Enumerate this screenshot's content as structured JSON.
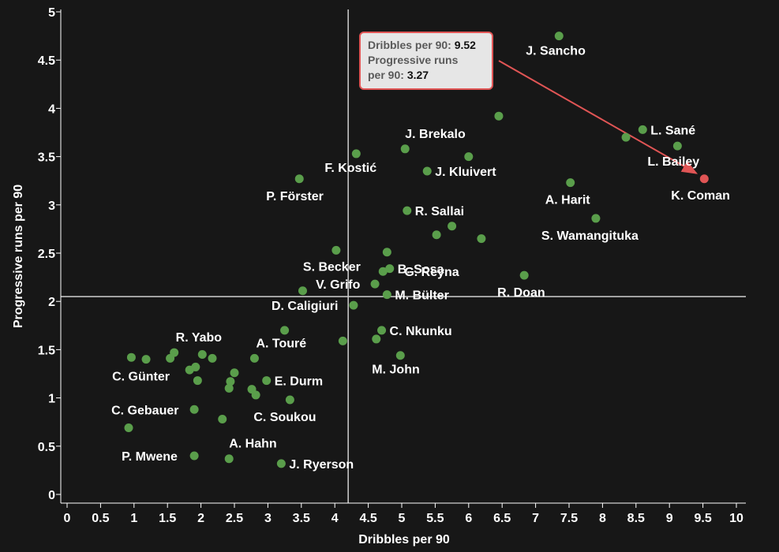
{
  "chart_data": {
    "type": "scatter",
    "xlabel": "Dribbles per 90",
    "ylabel": "Progressive runs per 90",
    "xlim": [
      0,
      10
    ],
    "ylim": [
      0,
      5
    ],
    "xticks": [
      "0",
      "0.5",
      "1",
      "1.5",
      "2",
      "2.5",
      "3",
      "3.5",
      "4",
      "4.5",
      "5",
      "5.5",
      "6",
      "6.5",
      "7",
      "7.5",
      "8",
      "8.5",
      "9",
      "9.5",
      "10"
    ],
    "yticks": [
      "0",
      "0.5",
      "1",
      "1.5",
      "2",
      "2.5",
      "3",
      "3.5",
      "4",
      "4.5",
      "5"
    ],
    "reference_lines": {
      "x": 4.2,
      "y": 2.05
    },
    "colors": {
      "point": "#5a9e4b",
      "highlight": "#e05555",
      "background": "#171717",
      "axis": "#ffffff"
    },
    "points": [
      {
        "x": 7.35,
        "y": 4.75,
        "label": "J. Sancho"
      },
      {
        "x": 6.45,
        "y": 3.92,
        "label": ""
      },
      {
        "x": 8.6,
        "y": 3.78,
        "label": "L. Sané"
      },
      {
        "x": 8.35,
        "y": 3.7,
        "label": ""
      },
      {
        "x": 9.12,
        "y": 3.61,
        "label": "L. Bailey"
      },
      {
        "x": 9.52,
        "y": 3.27,
        "label": "K. Coman",
        "highlight": true
      },
      {
        "x": 5.05,
        "y": 3.58,
        "label": "J. Brekalo"
      },
      {
        "x": 6.0,
        "y": 3.5,
        "label": ""
      },
      {
        "x": 4.32,
        "y": 3.53,
        "label": "F. Kostić"
      },
      {
        "x": 5.38,
        "y": 3.35,
        "label": "J. Kluivert"
      },
      {
        "x": 3.47,
        "y": 3.27,
        "label": "P. Förster"
      },
      {
        "x": 7.52,
        "y": 3.23,
        "label": "A. Harit"
      },
      {
        "x": 5.08,
        "y": 2.94,
        "label": "R. Sallai"
      },
      {
        "x": 7.9,
        "y": 2.86,
        "label": "S. Wamangituka"
      },
      {
        "x": 5.75,
        "y": 2.78,
        "label": ""
      },
      {
        "x": 5.52,
        "y": 2.69,
        "label": ""
      },
      {
        "x": 6.19,
        "y": 2.65,
        "label": ""
      },
      {
        "x": 4.02,
        "y": 2.53,
        "label": "S. Becker"
      },
      {
        "x": 4.78,
        "y": 2.51,
        "label": "G. Reyna"
      },
      {
        "x": 4.82,
        "y": 2.34,
        "label": "B. Sosa"
      },
      {
        "x": 4.72,
        "y": 2.31,
        "label": ""
      },
      {
        "x": 6.83,
        "y": 2.27,
        "label": "R. Doan"
      },
      {
        "x": 4.6,
        "y": 2.18,
        "label": "V. Grifo"
      },
      {
        "x": 3.52,
        "y": 2.11,
        "label": ""
      },
      {
        "x": 4.78,
        "y": 2.07,
        "label": "M. Bülter"
      },
      {
        "x": 4.28,
        "y": 1.96,
        "label": "D. Caligiuri"
      },
      {
        "x": 4.7,
        "y": 1.7,
        "label": "C. Nkunku"
      },
      {
        "x": 3.25,
        "y": 1.7,
        "label": ""
      },
      {
        "x": 4.12,
        "y": 1.59,
        "label": ""
      },
      {
        "x": 4.62,
        "y": 1.61,
        "label": ""
      },
      {
        "x": 1.6,
        "y": 1.47,
        "label": "R. Yabo"
      },
      {
        "x": 2.02,
        "y": 1.45,
        "label": ""
      },
      {
        "x": 4.98,
        "y": 1.44,
        "label": "M. John"
      },
      {
        "x": 2.8,
        "y": 1.41,
        "label": "A. Touré"
      },
      {
        "x": 2.17,
        "y": 1.41,
        "label": ""
      },
      {
        "x": 1.54,
        "y": 1.41,
        "label": ""
      },
      {
        "x": 0.96,
        "y": 1.42,
        "label": ""
      },
      {
        "x": 1.18,
        "y": 1.4,
        "label": "C. Günter"
      },
      {
        "x": 1.92,
        "y": 1.32,
        "label": ""
      },
      {
        "x": 1.83,
        "y": 1.29,
        "label": ""
      },
      {
        "x": 2.5,
        "y": 1.26,
        "label": ""
      },
      {
        "x": 1.95,
        "y": 1.18,
        "label": ""
      },
      {
        "x": 2.44,
        "y": 1.17,
        "label": ""
      },
      {
        "x": 2.98,
        "y": 1.18,
        "label": "E. Durm"
      },
      {
        "x": 2.42,
        "y": 1.1,
        "label": ""
      },
      {
        "x": 2.76,
        "y": 1.09,
        "label": ""
      },
      {
        "x": 2.82,
        "y": 1.03,
        "label": ""
      },
      {
        "x": 3.33,
        "y": 0.98,
        "label": "C. Soukou"
      },
      {
        "x": 1.9,
        "y": 0.88,
        "label": "C. Gebauer"
      },
      {
        "x": 2.32,
        "y": 0.78,
        "label": ""
      },
      {
        "x": 0.92,
        "y": 0.69,
        "label": ""
      },
      {
        "x": 1.9,
        "y": 0.4,
        "label": "P. Mwene"
      },
      {
        "x": 2.42,
        "y": 0.37,
        "label": "A. Hahn"
      },
      {
        "x": 3.2,
        "y": 0.32,
        "label": "J. Ryerson"
      }
    ]
  },
  "tooltip": {
    "line1_label": "Dribbles per 90:",
    "line1_value": "9.52",
    "line2_label": "Progressive runs",
    "line3_label": "per 90:",
    "line3_value": "3.27"
  }
}
